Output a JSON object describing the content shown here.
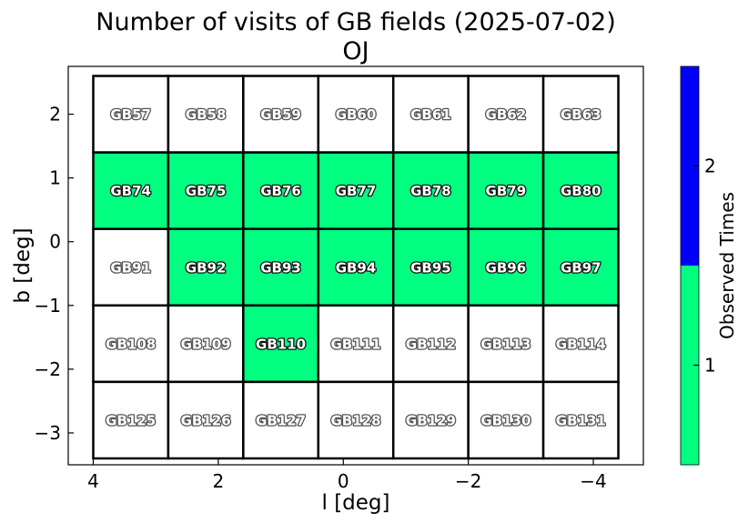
{
  "chart_data": {
    "type": "heatmap",
    "title": "Number of visits of GB fields (2025-07-02)",
    "subtitle": "OJ",
    "xlabel": "l [deg]",
    "ylabel": "b [deg]",
    "xlim": [
      4.4,
      -4.8
    ],
    "ylim": [
      -3.5,
      2.75
    ],
    "xticks": [
      4,
      2,
      0,
      -2,
      -4
    ],
    "xtick_labels": [
      "4",
      "2",
      "0",
      "−2",
      "−4"
    ],
    "yticks": [
      2,
      1,
      0,
      -1,
      -2,
      -3
    ],
    "ytick_labels": [
      "2",
      "1",
      "0",
      "−1",
      "−2",
      "−3"
    ],
    "grid": false,
    "grid_x_edges": [
      4.0,
      2.8,
      1.6,
      0.4,
      -0.8,
      -2.0,
      -3.2,
      -4.4
    ],
    "grid_y_edges": [
      2.6,
      1.4,
      0.2,
      -1.0,
      -2.2,
      -3.4
    ],
    "fields": [
      [
        "GB57",
        "GB58",
        "GB59",
        "GB60",
        "GB61",
        "GB62",
        "GB63"
      ],
      [
        "GB74",
        "GB75",
        "GB76",
        "GB77",
        "GB78",
        "GB79",
        "GB80"
      ],
      [
        "GB91",
        "GB92",
        "GB93",
        "GB94",
        "GB95",
        "GB96",
        "GB97"
      ],
      [
        "GB108",
        "GB109",
        "GB110",
        "GB111",
        "GB112",
        "GB113",
        "GB114"
      ],
      [
        "GB125",
        "GB126",
        "GB127",
        "GB128",
        "GB129",
        "GB130",
        "GB131"
      ]
    ],
    "visits": [
      [
        0,
        0,
        0,
        0,
        0,
        0,
        0
      ],
      [
        1,
        1,
        1,
        1,
        1,
        1,
        1
      ],
      [
        0,
        1,
        1,
        1,
        1,
        1,
        1
      ],
      [
        0,
        0,
        1,
        0,
        0,
        0,
        0
      ],
      [
        0,
        0,
        0,
        0,
        0,
        0,
        0
      ]
    ],
    "colorbar": {
      "label": "Observed Times",
      "ticks": [
        1,
        2
      ],
      "tick_labels": [
        "1",
        "2"
      ],
      "range": [
        0.5,
        2.5
      ],
      "colors": {
        "1": "#00ff80",
        "2": "#0000ff"
      }
    },
    "unvisited_color": "#ffffff"
  }
}
